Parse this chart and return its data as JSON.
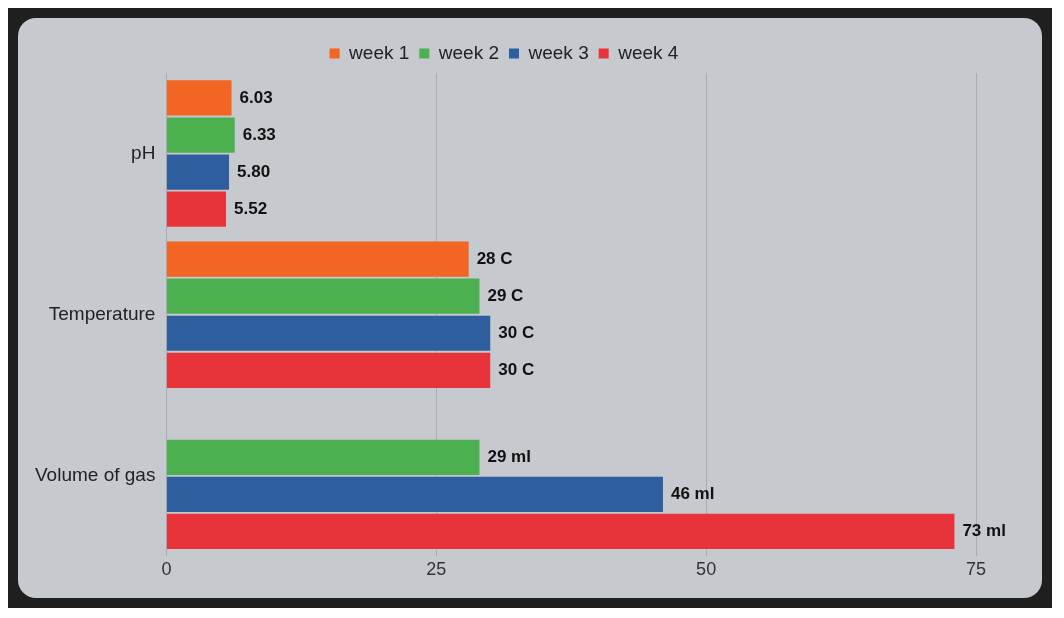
{
  "chart_data": {
    "type": "bar",
    "orientation": "horizontal",
    "categories": [
      "pH",
      "Temperature",
      "Volume of gas"
    ],
    "series": [
      {
        "name": "week 1",
        "color": "#f26522",
        "values": [
          6.03,
          28,
          null
        ],
        "value_labels": [
          "6.03",
          "28 C",
          null
        ]
      },
      {
        "name": "week 2",
        "color": "#4caf50",
        "values": [
          6.33,
          29,
          29
        ],
        "value_labels": [
          "6.33",
          "29 C",
          "29 ml"
        ]
      },
      {
        "name": "week 3",
        "color": "#2e5e9e",
        "values": [
          5.8,
          30,
          46
        ],
        "value_labels": [
          "5.80",
          "30 C",
          "46 ml"
        ]
      },
      {
        "name": "week 4",
        "color": "#e8333a",
        "values": [
          5.52,
          30,
          73
        ],
        "value_labels": [
          "5.52",
          "30 C",
          "73 ml"
        ]
      }
    ],
    "xlim": [
      0,
      75
    ],
    "xticks": [
      0,
      25,
      50,
      75
    ],
    "grid": "x",
    "legend": "top"
  }
}
